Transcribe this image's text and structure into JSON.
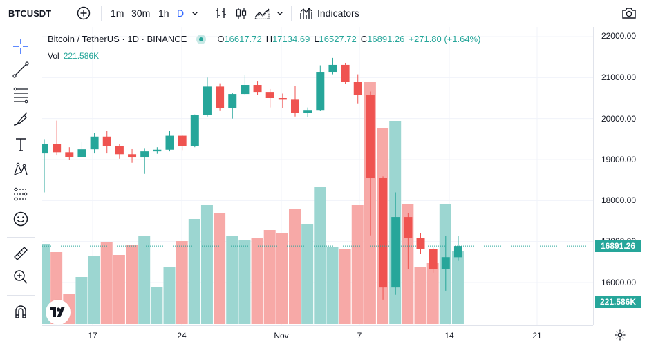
{
  "symbol": "BTCUSDT",
  "toolbar": {
    "timeframes": [
      "1m",
      "30m",
      "1h",
      "D"
    ],
    "indicators_label": "Indicators"
  },
  "legend": {
    "title": "Bitcoin / TetherUS · 1D · BINANCE",
    "o_label": "O",
    "o_value": "16617.72",
    "h_label": "H",
    "h_value": "17134.69",
    "l_label": "L",
    "l_value": "16527.72",
    "c_label": "C",
    "c_value": "16891.26",
    "change": "+271.80 (+1.64%)",
    "vol_label": "Vol",
    "vol_value": "221.586K"
  },
  "price_scale": {
    "labels": [
      "22000.00",
      "21000.00",
      "20000.00",
      "19000.00",
      "18000.00",
      "17000.00",
      "16000.00"
    ],
    "last_price_tag": "16891.26",
    "volume_tag": "221.586K"
  },
  "time_scale": {
    "labels": [
      "17",
      "24",
      "Nov",
      "7",
      "14",
      "21"
    ]
  },
  "colors": {
    "up": "#26a69a",
    "down": "#ef5350",
    "up_volume": "#9cd6d1",
    "down_volume": "#f7a9a7",
    "accent": "#2962ff"
  },
  "icons": {
    "add_symbol": "plus-circle-icon",
    "bar_type": "bars-icon",
    "candle_type": "candles-icon",
    "area_type": "area-icon",
    "indicators": "indicators-icon",
    "snapshot": "camera-icon",
    "settings": "gear-icon"
  },
  "chart_data": {
    "type": "candlestick",
    "interval": "1D",
    "ylim": [
      15200,
      22300
    ],
    "candles": [
      {
        "o": 19150,
        "h": 19500,
        "l": 18200,
        "c": 19380
      },
      {
        "o": 19380,
        "h": 19950,
        "l": 19100,
        "c": 19180
      },
      {
        "o": 19180,
        "h": 19300,
        "l": 19000,
        "c": 19060
      },
      {
        "o": 19060,
        "h": 19420,
        "l": 19050,
        "c": 19250
      },
      {
        "o": 19250,
        "h": 19650,
        "l": 19150,
        "c": 19560
      },
      {
        "o": 19560,
        "h": 19700,
        "l": 19150,
        "c": 19330
      },
      {
        "o": 19330,
        "h": 19380,
        "l": 19020,
        "c": 19130
      },
      {
        "o": 19130,
        "h": 19270,
        "l": 18920,
        "c": 19050
      },
      {
        "o": 19050,
        "h": 19280,
        "l": 18650,
        "c": 19200
      },
      {
        "o": 19200,
        "h": 19300,
        "l": 19140,
        "c": 19240
      },
      {
        "o": 19240,
        "h": 19700,
        "l": 19200,
        "c": 19580
      },
      {
        "o": 19580,
        "h": 19600,
        "l": 19230,
        "c": 19330
      },
      {
        "o": 19330,
        "h": 20100,
        "l": 19300,
        "c": 20090
      },
      {
        "o": 20090,
        "h": 21000,
        "l": 20050,
        "c": 20780
      },
      {
        "o": 20780,
        "h": 20860,
        "l": 20200,
        "c": 20250
      },
      {
        "o": 20250,
        "h": 20620,
        "l": 20000,
        "c": 20600
      },
      {
        "o": 20600,
        "h": 21070,
        "l": 20580,
        "c": 20820
      },
      {
        "o": 20820,
        "h": 20920,
        "l": 20570,
        "c": 20650
      },
      {
        "o": 20650,
        "h": 20720,
        "l": 20270,
        "c": 20500
      },
      {
        "o": 20500,
        "h": 20610,
        "l": 20250,
        "c": 20460
      },
      {
        "o": 20460,
        "h": 20800,
        "l": 20050,
        "c": 20130
      },
      {
        "o": 20130,
        "h": 20270,
        "l": 20030,
        "c": 20210
      },
      {
        "o": 20210,
        "h": 21300,
        "l": 20190,
        "c": 21140
      },
      {
        "o": 21140,
        "h": 21480,
        "l": 21080,
        "c": 21310
      },
      {
        "o": 21310,
        "h": 21360,
        "l": 20850,
        "c": 20890
      },
      {
        "o": 20890,
        "h": 21080,
        "l": 20370,
        "c": 20580
      },
      {
        "o": 20580,
        "h": 20660,
        "l": 17150,
        "c": 18550
      },
      {
        "o": 18550,
        "h": 18590,
        "l": 15580,
        "c": 15880
      },
      {
        "o": 15880,
        "h": 18200,
        "l": 15700,
        "c": 17600
      },
      {
        "o": 17600,
        "h": 17700,
        "l": 16330,
        "c": 17080
      },
      {
        "o": 17080,
        "h": 17200,
        "l": 16700,
        "c": 16820
      },
      {
        "o": 16820,
        "h": 16850,
        "l": 16240,
        "c": 16330
      },
      {
        "o": 16330,
        "h": 17130,
        "l": 15800,
        "c": 16620
      },
      {
        "o": 16617.72,
        "h": 17134.69,
        "l": 16527.72,
        "c": 16891.26
      }
    ],
    "volume": [
      58,
      52,
      22,
      34,
      49,
      59,
      50,
      57,
      64,
      27,
      41,
      60,
      76,
      86,
      80,
      64,
      61,
      62,
      68,
      66,
      83,
      72,
      99,
      56,
      54,
      86,
      175,
      142,
      147,
      87,
      41,
      44,
      87,
      53
    ]
  }
}
